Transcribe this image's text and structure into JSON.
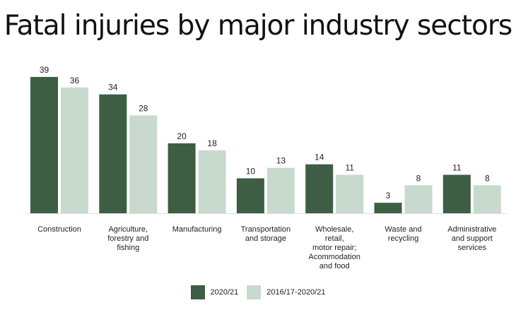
{
  "chart_data": {
    "type": "bar",
    "title": "Fatal injuries by major industry sectors",
    "xlabel": "",
    "ylabel": "",
    "ylim": [
      0,
      40
    ],
    "grid": false,
    "legend_position": "bottom-center",
    "categories": [
      "Construction",
      "Agriculture, forestry and fishing",
      "Manufacturing",
      "Transportation and storage",
      "Wholesale, retail, motor repair; Acommodation and food",
      "Waste and recycling",
      "Administrative and support services"
    ],
    "category_label_lines": [
      [
        "Construction"
      ],
      [
        "Agriculture,",
        "forestry and",
        "fishing"
      ],
      [
        "Manufacturing"
      ],
      [
        "Transportation",
        "and storage"
      ],
      [
        "Wholesale,",
        "retail,",
        "motor repair;",
        "Acommodation",
        "and food"
      ],
      [
        "Waste and",
        "recycling"
      ],
      [
        "Administrative",
        "and support",
        "services"
      ]
    ],
    "series": [
      {
        "name": "2020/21",
        "color": "#3d5e43",
        "values": [
          39,
          34,
          20,
          10,
          14,
          3,
          11
        ]
      },
      {
        "name": "2016/17-2020/21",
        "color": "#c8dacd",
        "values": [
          36,
          28,
          18,
          13,
          11,
          8,
          8
        ]
      }
    ]
  }
}
